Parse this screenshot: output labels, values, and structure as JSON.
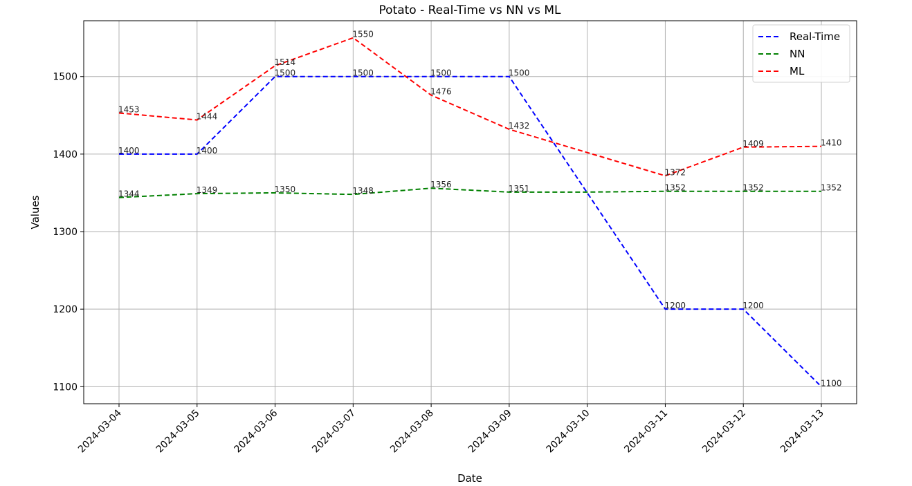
{
  "chart_data": {
    "type": "line",
    "title": "Potato - Real-Time vs NN vs ML",
    "xlabel": "Date",
    "ylabel": "Values",
    "categories": [
      "2024-03-04",
      "2024-03-05",
      "2024-03-06",
      "2024-03-07",
      "2024-03-08",
      "2024-03-09",
      "2024-03-10",
      "2024-03-11",
      "2024-03-12",
      "2024-03-13"
    ],
    "yticks": [
      1100,
      1200,
      1300,
      1400,
      1500
    ],
    "ylim": [
      1078,
      1572
    ],
    "grid": true,
    "legend_position": "top-right",
    "series": [
      {
        "name": "Real-Time",
        "color": "#0000ff",
        "values": [
          1400,
          1400,
          1500,
          1500,
          1500,
          1500,
          null,
          1200,
          1200,
          1100
        ],
        "labels": [
          "1400",
          "1400",
          "1500",
          "1500",
          "1500",
          "1500",
          null,
          "1200",
          "1200",
          "1100"
        ]
      },
      {
        "name": "NN",
        "color": "#008000",
        "values": [
          1344,
          1349,
          1350,
          1348,
          1356,
          1351,
          1351,
          1352,
          1352,
          1352
        ],
        "labels": [
          "1344",
          "1349",
          "1350",
          "1348",
          "1356",
          "1351",
          null,
          "1352",
          "1352",
          "1352"
        ]
      },
      {
        "name": "ML",
        "color": "#ff0000",
        "values": [
          1453,
          1444,
          1514,
          1550,
          1476,
          1432,
          1402,
          1372,
          1409,
          1410
        ],
        "labels": [
          "1453",
          "1444",
          "1514",
          "1550",
          "1476",
          "1432",
          null,
          "1372",
          "1409",
          "1410"
        ]
      }
    ]
  }
}
